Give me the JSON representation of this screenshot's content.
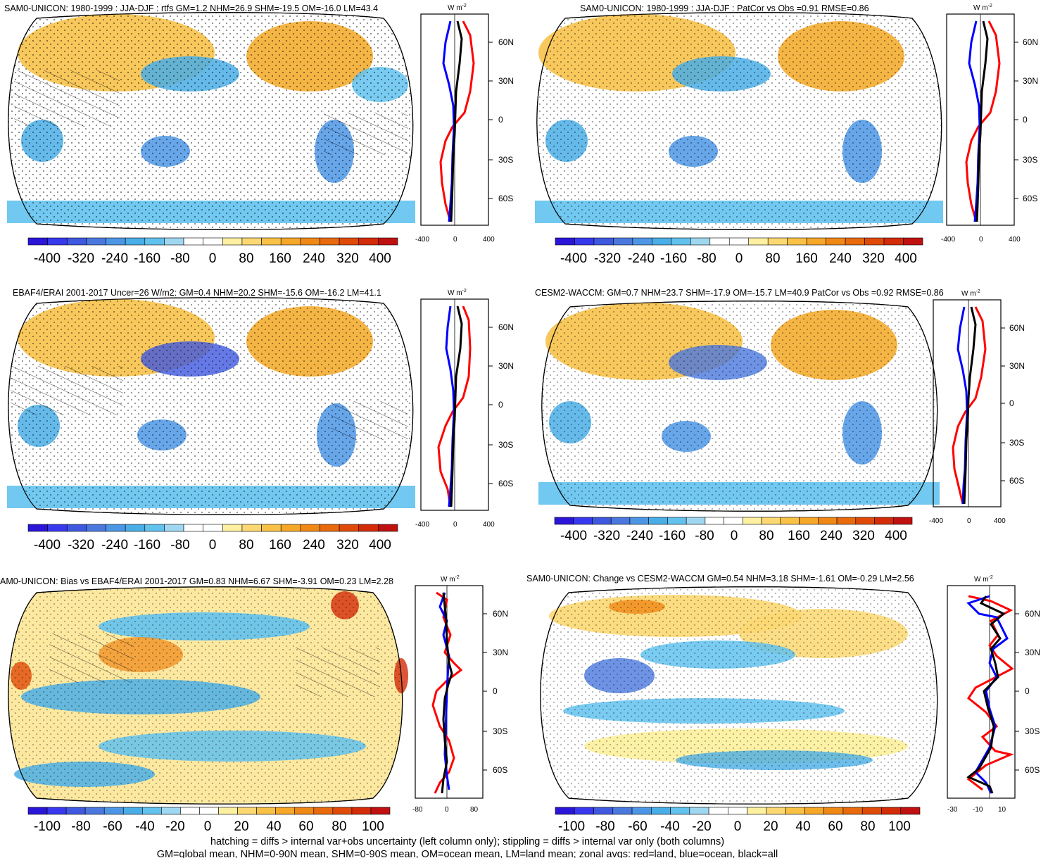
{
  "colors": {
    "map_ocean": "#ffffff",
    "coast": "#000000",
    "land_line": "#bbbbbb",
    "red": "#ff0000",
    "blue": "#0000ff",
    "black": "#000000"
  },
  "colorbar_palette": [
    "#2a15d9",
    "#3838ee",
    "#3f58e0",
    "#4a78df",
    "#4d96e6",
    "#4aaee6",
    "#62c2ee",
    "#9fd7f0",
    "#ffffff",
    "#ffffff",
    "#fdf0a0",
    "#fcd872",
    "#f9c246",
    "#f6a728",
    "#f08816",
    "#e86a0c",
    "#e04a08",
    "#d42b08",
    "#c01010"
  ],
  "panels": [
    {
      "id": "a",
      "title": "SAM0-UNICON: 1980-1999 : JJA-DJF : rtfs GM=1.2 NHM=26.9 SHM=-19.5 OM=-16.0 LM=43.4",
      "zonal_ticks": [
        "-400",
        "0",
        "400"
      ],
      "colorbar_labels": [
        "-400",
        "-320",
        "-240",
        "-160",
        "-80",
        "0",
        "80",
        "160",
        "240",
        "320",
        "400"
      ]
    },
    {
      "id": "b",
      "title": "SAM0-UNICON: 1980-1999 : JJA-DJF : PatCor vs Obs =0.91 RMSE=0.86",
      "zonal_ticks": [
        "-400",
        "0",
        "400"
      ],
      "colorbar_labels": [
        "-400",
        "-320",
        "-240",
        "-160",
        "-80",
        "0",
        "80",
        "160",
        "240",
        "320",
        "400"
      ]
    },
    {
      "id": "c",
      "title": "EBAF4/ERAI 2001-2017 Uncer=26 W/m2: GM=0.4 NHM=20.2 SHM=-15.6 OM=-16.2 LM=41.1",
      "zonal_ticks": [
        "-400",
        "0",
        "400"
      ],
      "colorbar_labels": [
        "-400",
        "-320",
        "-240",
        "-160",
        "-80",
        "0",
        "80",
        "160",
        "240",
        "320",
        "400"
      ]
    },
    {
      "id": "d",
      "title": "CESM2-WACCM: GM=0.7 NHM=23.7 SHM=-17.9 OM=-15.7 LM=40.9 PatCor vs Obs =0.92 RMSE=0.86",
      "zonal_ticks": [
        "-400",
        "0",
        "400"
      ],
      "colorbar_labels": [
        "-400",
        "-320",
        "-240",
        "-160",
        "-80",
        "0",
        "80",
        "160",
        "240",
        "320",
        "400"
      ]
    },
    {
      "id": "e",
      "title": "AM0-UNICON: Bias vs EBAF4/ERAI 2001-2017 GM=0.83 NHM=6.67 SHM=-3.91 OM=0.23 LM=2.28",
      "zonal_ticks": [
        "-80",
        "0",
        "80"
      ],
      "colorbar_labels": [
        "-100",
        "-80",
        "-60",
        "-40",
        "-20",
        "0",
        "20",
        "40",
        "60",
        "80",
        "100"
      ]
    },
    {
      "id": "f",
      "title": "SAM0-UNICON: Change vs CESM2-WACCM GM=0.54 NHM=3.18 SHM=-1.61 OM=-0.29 LM=2.56",
      "zonal_ticks": [
        "-30",
        "-10",
        "10"
      ],
      "colorbar_labels": [
        "-100",
        "-80",
        "-60",
        "-40",
        "-20",
        "0",
        "20",
        "40",
        "60",
        "80",
        "100"
      ]
    }
  ],
  "lat_labels": [
    "60N",
    "30N",
    "0",
    "30S",
    "60S"
  ],
  "units_label": "W m",
  "units_sup": "-2",
  "caption": {
    "line1": "hatching = diffs > internal var+obs uncertainty (left column only); stippling = diffs > internal var only (both columns)",
    "line2": "GM=global mean, NHM=0-90N mean, SHM=0-90S mean, OM=ocean mean, LM=land mean; zonal avgs: red=land, blue=ocean, black=all"
  }
}
